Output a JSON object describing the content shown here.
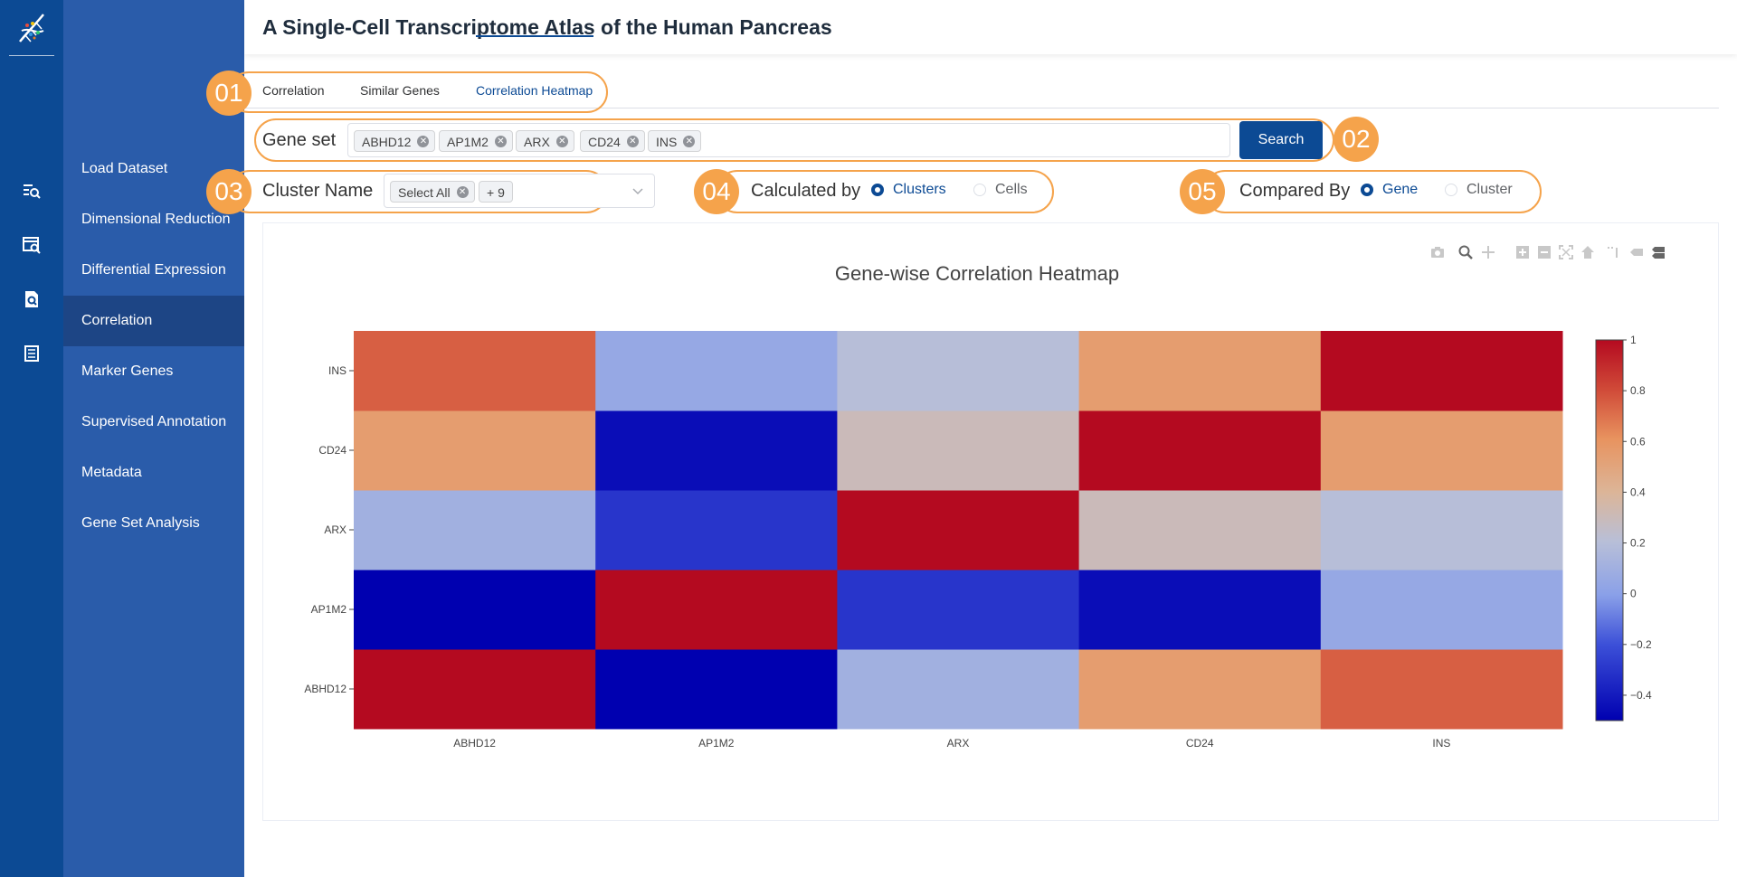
{
  "header": {
    "title": "A Single-Cell Transcriptome Atlas of the Human Pancreas"
  },
  "rail": {
    "icons": [
      "dna-logo-icon",
      "search-list-icon",
      "search-window-icon",
      "search-document-icon",
      "document-icon"
    ]
  },
  "sidebar": {
    "items": [
      {
        "label": "Load Dataset",
        "active": false
      },
      {
        "label": "Dimensional Reduction",
        "active": false
      },
      {
        "label": "Differential Expression",
        "active": false
      },
      {
        "label": "Correlation",
        "active": true
      },
      {
        "label": "Marker Genes",
        "active": false
      },
      {
        "label": "Supervised Annotation",
        "active": false
      },
      {
        "label": "Metadata",
        "active": false
      },
      {
        "label": "Gene Set Analysis",
        "active": false
      }
    ]
  },
  "tabs": [
    {
      "label": "Correlation",
      "active": false
    },
    {
      "label": "Similar Genes",
      "active": false
    },
    {
      "label": "Correlation Heatmap",
      "active": true
    }
  ],
  "callouts": [
    "01",
    "02",
    "03",
    "04",
    "05"
  ],
  "gene_set": {
    "label": "Gene set",
    "tags": [
      "ABHD12",
      "AP1M2",
      "ARX",
      "CD24",
      "INS"
    ],
    "search_label": "Search"
  },
  "cluster": {
    "label": "Cluster Name",
    "tag": "Select All",
    "more": "+ 9"
  },
  "calculated_by": {
    "label": "Calculated by",
    "options": [
      "Clusters",
      "Cells"
    ],
    "selected": "Clusters"
  },
  "compared_by": {
    "label": "Compared By",
    "options": [
      "Gene",
      "Cluster"
    ],
    "selected": "Gene"
  },
  "colors": {
    "primary": "#0c4a94",
    "sidebar": "#2a5caa",
    "accent": "#f5a34b"
  },
  "modebar": [
    "camera-icon",
    "zoom-icon",
    "pan-icon",
    "zoom-in-icon",
    "zoom-out-icon",
    "autoscale-icon",
    "reset-axes-icon",
    "spike-lines-icon",
    "hover-closest-icon",
    "hover-compare-icon"
  ],
  "chart_data": {
    "type": "heatmap",
    "title": "Gene-wise Correlation Heatmap",
    "x": [
      "ABHD12",
      "AP1M2",
      "ARX",
      "CD24",
      "INS"
    ],
    "y": [
      "ABHD12",
      "AP1M2",
      "ARX",
      "CD24",
      "INS"
    ],
    "z": [
      [
        1.0,
        -0.5,
        0.1,
        0.55,
        0.75
      ],
      [
        -0.5,
        1.0,
        -0.3,
        -0.45,
        0.05
      ],
      [
        0.1,
        -0.3,
        1.0,
        0.3,
        0.2
      ],
      [
        0.55,
        -0.45,
        0.3,
        1.0,
        0.55
      ],
      [
        0.75,
        0.05,
        0.2,
        0.55,
        1.0
      ]
    ],
    "zmin": -0.5,
    "zmax": 1,
    "colorscale": "coolwarm",
    "colorbar_ticks": [
      "1",
      "0.8",
      "0.6",
      "0.4",
      "0.2",
      "0",
      "−0.2",
      "−0.4"
    ],
    "colorbar_tick_values": [
      1,
      0.8,
      0.6,
      0.4,
      0.2,
      0,
      -0.2,
      -0.4
    ]
  }
}
